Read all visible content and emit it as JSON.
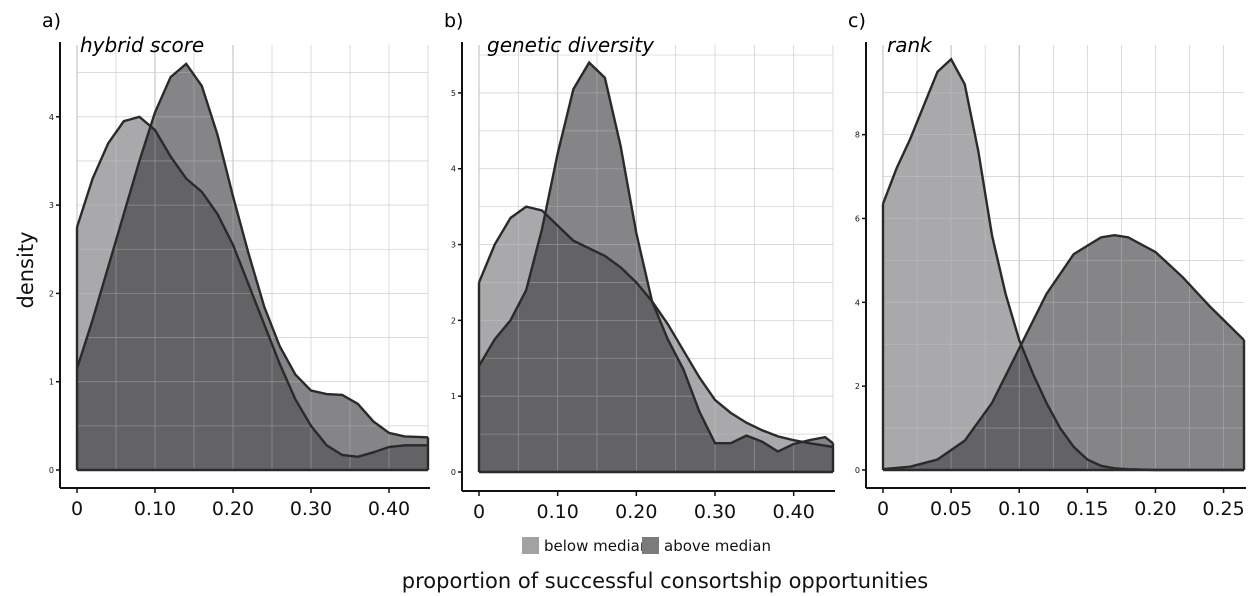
{
  "ylabel": "density",
  "xlabel": "proportion of successful consortship opportunities",
  "legend": [
    {
      "label": "below median",
      "color": "#a2a2a4"
    },
    {
      "label": "above median",
      "color": "#7b7b7d"
    }
  ],
  "colors": {
    "overlap": "#626264",
    "line": "#2a2a2a",
    "grid": "#c4c4c4"
  },
  "chart_data": [
    {
      "type": "area",
      "panel": "a)",
      "title": "hybrid score",
      "xlim": [
        -0.02,
        0.45
      ],
      "ylim": [
        0,
        4.7
      ],
      "xticks": [
        0,
        0.1,
        0.2,
        0.3,
        0.4
      ],
      "xtick_labels": [
        "0",
        "0.10",
        "0.20",
        "0.30",
        "0.40"
      ],
      "yticks": [
        0,
        1,
        2,
        3,
        4
      ],
      "grid": true,
      "series": [
        {
          "name": "below median",
          "x": [
            0,
            0.02,
            0.04,
            0.06,
            0.08,
            0.1,
            0.12,
            0.14,
            0.16,
            0.18,
            0.2,
            0.22,
            0.24,
            0.26,
            0.28,
            0.3,
            0.32,
            0.34,
            0.36,
            0.38,
            0.4,
            0.42,
            0.45
          ],
          "y": [
            2.75,
            3.3,
            3.7,
            3.95,
            4.0,
            3.85,
            3.55,
            3.3,
            3.15,
            2.9,
            2.55,
            2.1,
            1.65,
            1.2,
            0.8,
            0.5,
            0.28,
            0.17,
            0.15,
            0.2,
            0.26,
            0.28,
            0.28
          ]
        },
        {
          "name": "above median",
          "x": [
            0,
            0.02,
            0.04,
            0.06,
            0.08,
            0.1,
            0.12,
            0.14,
            0.16,
            0.18,
            0.2,
            0.22,
            0.24,
            0.26,
            0.28,
            0.3,
            0.32,
            0.34,
            0.36,
            0.38,
            0.4,
            0.42,
            0.45
          ],
          "y": [
            1.15,
            1.7,
            2.3,
            2.9,
            3.5,
            4.05,
            4.45,
            4.6,
            4.35,
            3.8,
            3.1,
            2.45,
            1.85,
            1.4,
            1.08,
            0.9,
            0.86,
            0.85,
            0.75,
            0.55,
            0.42,
            0.38,
            0.37
          ]
        }
      ]
    },
    {
      "type": "area",
      "panel": "b)",
      "title": "genetic diversity",
      "xlim": [
        -0.02,
        0.45
      ],
      "ylim": [
        0,
        5.5
      ],
      "xticks": [
        0,
        0.1,
        0.2,
        0.3,
        0.4
      ],
      "xtick_labels": [
        "0",
        "0.10",
        "0.20",
        "0.30",
        "0.40"
      ],
      "yticks": [
        0,
        1,
        2,
        3,
        4,
        5
      ],
      "grid": true,
      "series": [
        {
          "name": "below median",
          "x": [
            0,
            0.02,
            0.04,
            0.06,
            0.08,
            0.1,
            0.12,
            0.14,
            0.16,
            0.18,
            0.2,
            0.22,
            0.24,
            0.26,
            0.28,
            0.3,
            0.32,
            0.34,
            0.36,
            0.38,
            0.4,
            0.42,
            0.45
          ],
          "y": [
            2.5,
            3.0,
            3.35,
            3.5,
            3.45,
            3.25,
            3.05,
            2.95,
            2.85,
            2.7,
            2.5,
            2.25,
            1.95,
            1.6,
            1.25,
            0.95,
            0.78,
            0.65,
            0.55,
            0.47,
            0.42,
            0.38,
            0.33
          ]
        },
        {
          "name": "above median",
          "x": [
            0,
            0.02,
            0.04,
            0.06,
            0.08,
            0.1,
            0.12,
            0.14,
            0.16,
            0.18,
            0.2,
            0.22,
            0.24,
            0.26,
            0.28,
            0.3,
            0.32,
            0.34,
            0.36,
            0.38,
            0.4,
            0.42,
            0.44,
            0.45
          ],
          "y": [
            1.4,
            1.75,
            2.0,
            2.4,
            3.2,
            4.2,
            5.05,
            5.4,
            5.2,
            4.3,
            3.15,
            2.25,
            1.75,
            1.35,
            0.8,
            0.38,
            0.38,
            0.48,
            0.4,
            0.27,
            0.37,
            0.42,
            0.46,
            0.38
          ]
        }
      ]
    },
    {
      "type": "area",
      "panel": "c)",
      "title": "rank",
      "xlim": [
        -0.01,
        0.265
      ],
      "ylim": [
        0,
        9.9
      ],
      "xticks": [
        0,
        0.05,
        0.1,
        0.15,
        0.2,
        0.25
      ],
      "xtick_labels": [
        "0",
        "0.05",
        "0.10",
        "0.15",
        "0.20",
        "0.25"
      ],
      "yticks": [
        0,
        2,
        4,
        6,
        8
      ],
      "grid": true,
      "series": [
        {
          "name": "below median",
          "x": [
            0,
            0.01,
            0.02,
            0.03,
            0.04,
            0.05,
            0.06,
            0.07,
            0.08,
            0.09,
            0.1,
            0.11,
            0.12,
            0.13,
            0.14,
            0.15,
            0.16,
            0.17,
            0.18,
            0.19,
            0.2,
            0.22,
            0.24,
            0.265
          ],
          "y": [
            6.35,
            7.2,
            7.9,
            8.7,
            9.5,
            9.8,
            9.2,
            7.6,
            5.6,
            4.2,
            3.1,
            2.3,
            1.6,
            1.0,
            0.55,
            0.25,
            0.1,
            0.04,
            0.02,
            0.01,
            0.0,
            0.0,
            0.0,
            0.0
          ]
        },
        {
          "name": "above median",
          "x": [
            0,
            0.02,
            0.04,
            0.06,
            0.08,
            0.1,
            0.12,
            0.14,
            0.16,
            0.17,
            0.18,
            0.2,
            0.22,
            0.24,
            0.265
          ],
          "y": [
            0.02,
            0.08,
            0.25,
            0.7,
            1.6,
            2.9,
            4.2,
            5.15,
            5.55,
            5.6,
            5.55,
            5.2,
            4.6,
            3.9,
            3.1
          ]
        }
      ]
    }
  ]
}
